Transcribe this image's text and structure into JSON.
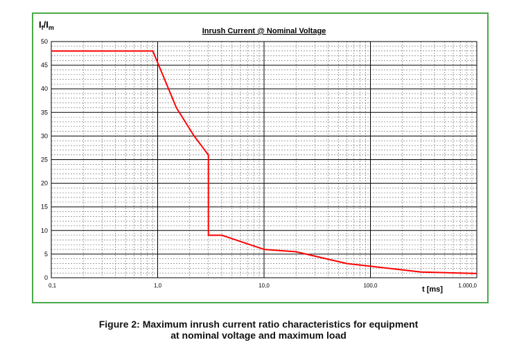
{
  "chart_data": {
    "type": "line",
    "title": "Inrush Current @ Nominal Voltage",
    "ylabel": {
      "main": "I",
      "sub1": "f",
      "sep": "/I",
      "sub2": "m"
    },
    "xlabel": "t [ms]",
    "x_scale": "log",
    "xlim": [
      0.1,
      1000
    ],
    "ylim": [
      0,
      50
    ],
    "y_ticks": [
      0,
      5,
      10,
      15,
      20,
      25,
      30,
      35,
      40,
      45,
      50
    ],
    "y_tick_labels": [
      "0",
      "5",
      "10",
      "15",
      "20",
      "25",
      "30",
      "35",
      "40",
      "45",
      "50"
    ],
    "x_ticks": [
      0.1,
      1,
      10,
      100,
      1000
    ],
    "x_tick_labels": [
      "0,1",
      "1,0",
      "10,0",
      "100,0",
      "1.000,0"
    ],
    "grid": true,
    "series": [
      {
        "color": "#ff0000",
        "x": [
          0.1,
          0.9,
          1.5,
          2.2,
          3.0,
          3.0,
          4.0,
          10.0,
          20.0,
          60.0,
          300.0,
          1000.0
        ],
        "y": [
          48,
          48,
          36,
          30,
          26,
          9,
          9,
          6,
          5.5,
          3,
          1.2,
          0.9
        ]
      }
    ]
  },
  "caption": {
    "line1": "Figure 2: Maximum inrush current ratio characteristics for equipment",
    "line2": "at nominal voltage and maximum load"
  }
}
